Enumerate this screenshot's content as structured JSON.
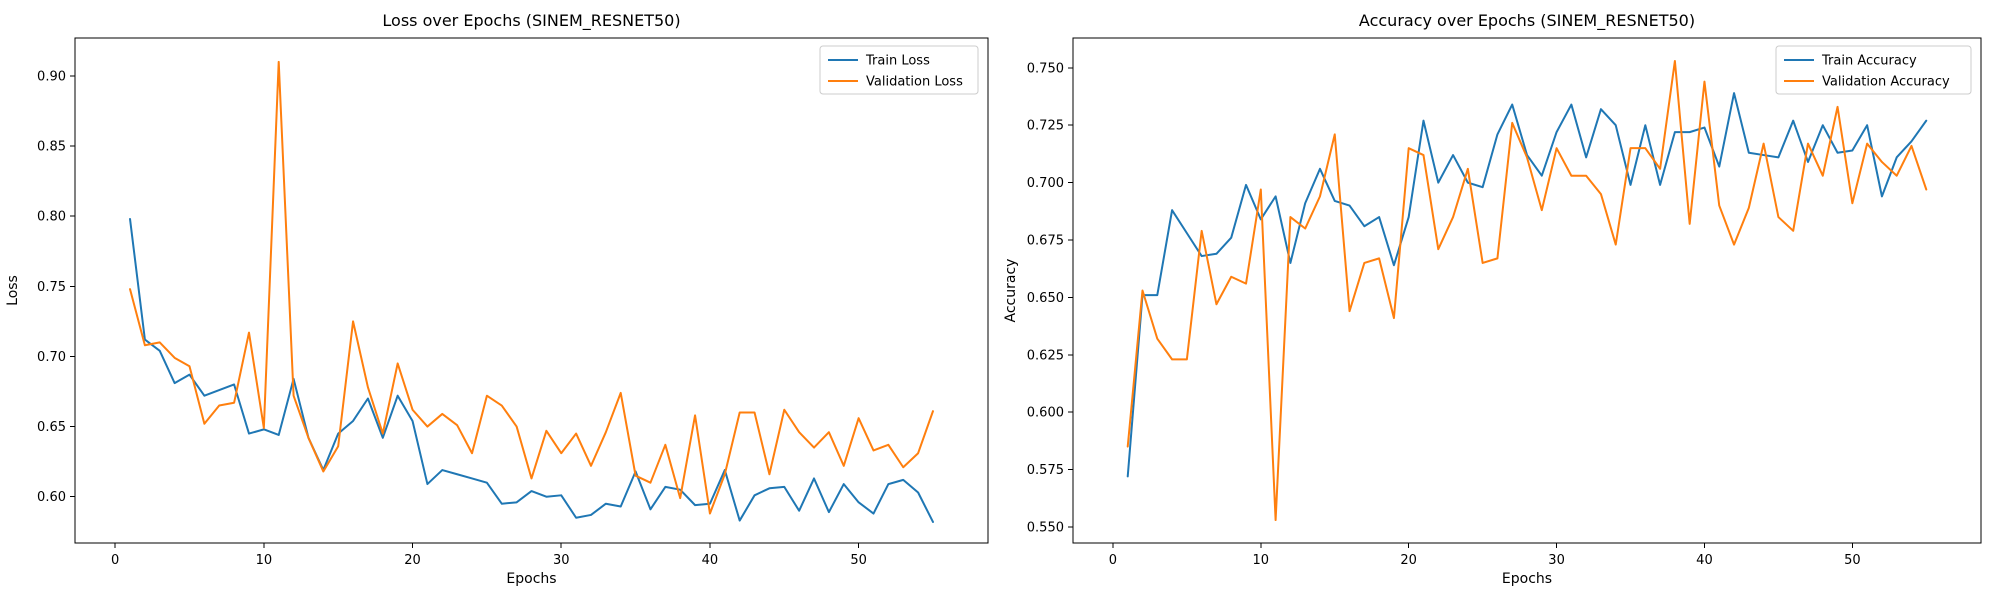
{
  "chart_data": [
    {
      "type": "line",
      "title": "Loss over Epochs (SINEM_RESNET50)",
      "xlabel": "Epochs",
      "ylabel": "Loss",
      "xlim": [
        -2.7,
        58.7
      ],
      "ylim": [
        0.567,
        0.927
      ],
      "xticks": [
        0,
        10,
        20,
        30,
        40,
        50
      ],
      "yticks": [
        0.6,
        0.65,
        0.7,
        0.75,
        0.8,
        0.85,
        0.9
      ],
      "ytick_decimals": 2,
      "legend": "top-right",
      "grid": false,
      "x": [
        1,
        2,
        3,
        4,
        5,
        6,
        7,
        8,
        9,
        10,
        11,
        12,
        13,
        14,
        15,
        16,
        17,
        18,
        19,
        20,
        21,
        22,
        23,
        24,
        25,
        26,
        27,
        28,
        29,
        30,
        31,
        32,
        33,
        34,
        35,
        36,
        37,
        38,
        39,
        40,
        41,
        42,
        43,
        44,
        45,
        46,
        47,
        48,
        49,
        50,
        51,
        52,
        53,
        54,
        55
      ],
      "series": [
        {
          "name": "Train Loss",
          "color": "#1f77b4",
          "values": [
            0.798,
            0.712,
            0.704,
            0.681,
            0.687,
            0.672,
            0.676,
            0.68,
            0.645,
            0.648,
            0.644,
            0.684,
            0.642,
            0.619,
            0.645,
            0.654,
            0.67,
            0.642,
            0.672,
            0.654,
            0.609,
            0.619,
            0.616,
            0.613,
            0.61,
            0.595,
            0.596,
            0.604,
            0.6,
            0.601,
            0.585,
            0.587,
            0.595,
            0.593,
            0.618,
            0.591,
            0.607,
            0.605,
            0.594,
            0.595,
            0.619,
            0.583,
            0.601,
            0.606,
            0.607,
            0.59,
            0.613,
            0.589,
            0.609,
            0.596,
            0.588,
            0.609,
            0.612,
            0.603,
            0.582
          ]
        },
        {
          "name": "Validation Loss",
          "color": "#ff7f0e",
          "values": [
            0.748,
            0.708,
            0.71,
            0.699,
            0.693,
            0.652,
            0.665,
            0.667,
            0.717,
            0.649,
            0.91,
            0.672,
            0.642,
            0.618,
            0.636,
            0.725,
            0.678,
            0.645,
            0.695,
            0.662,
            0.65,
            0.659,
            0.651,
            0.631,
            0.672,
            0.665,
            0.65,
            0.613,
            0.647,
            0.631,
            0.645,
            0.622,
            0.646,
            0.674,
            0.615,
            0.61,
            0.637,
            0.599,
            0.658,
            0.588,
            0.616,
            0.66,
            0.66,
            0.616,
            0.662,
            0.646,
            0.635,
            0.646,
            0.622,
            0.656,
            0.633,
            0.637,
            0.621,
            0.631,
            0.661
          ]
        }
      ]
    },
    {
      "type": "line",
      "title": "Accuracy over Epochs (SINEM_RESNET50)",
      "xlabel": "Epochs",
      "ylabel": "Accuracy",
      "xlim": [
        -2.7,
        58.7
      ],
      "ylim": [
        0.543,
        0.763
      ],
      "xticks": [
        0,
        10,
        20,
        30,
        40,
        50
      ],
      "yticks": [
        0.55,
        0.575,
        0.6,
        0.625,
        0.65,
        0.675,
        0.7,
        0.725,
        0.75
      ],
      "ytick_decimals": 3,
      "legend": "top-right",
      "grid": false,
      "x": [
        1,
        2,
        3,
        4,
        5,
        6,
        7,
        8,
        9,
        10,
        11,
        12,
        13,
        14,
        15,
        16,
        17,
        18,
        19,
        20,
        21,
        22,
        23,
        24,
        25,
        26,
        27,
        28,
        29,
        30,
        31,
        32,
        33,
        34,
        35,
        36,
        37,
        38,
        39,
        40,
        41,
        42,
        43,
        44,
        45,
        46,
        47,
        48,
        49,
        50,
        51,
        52,
        53,
        54,
        55
      ],
      "series": [
        {
          "name": "Train Accuracy",
          "color": "#1f77b4",
          "values": [
            0.572,
            0.651,
            0.651,
            0.688,
            0.678,
            0.668,
            0.669,
            0.676,
            0.699,
            0.684,
            0.694,
            0.665,
            0.691,
            0.706,
            0.692,
            0.69,
            0.681,
            0.685,
            0.664,
            0.685,
            0.727,
            0.7,
            0.712,
            0.7,
            0.698,
            0.721,
            0.734,
            0.712,
            0.703,
            0.722,
            0.734,
            0.711,
            0.732,
            0.725,
            0.699,
            0.725,
            0.699,
            0.722,
            0.722,
            0.724,
            0.707,
            0.739,
            0.713,
            0.712,
            0.711,
            0.727,
            0.709,
            0.725,
            0.713,
            0.714,
            0.725,
            0.694,
            0.711,
            0.718,
            0.727
          ]
        },
        {
          "name": "Validation Accuracy",
          "color": "#ff7f0e",
          "values": [
            0.585,
            0.653,
            0.632,
            0.623,
            0.623,
            0.679,
            0.647,
            0.659,
            0.656,
            0.697,
            0.553,
            0.685,
            0.68,
            0.694,
            0.721,
            0.644,
            0.665,
            0.667,
            0.641,
            0.715,
            0.712,
            0.671,
            0.685,
            0.706,
            0.665,
            0.667,
            0.726,
            0.711,
            0.688,
            0.715,
            0.703,
            0.703,
            0.695,
            0.673,
            0.715,
            0.715,
            0.706,
            0.753,
            0.682,
            0.744,
            0.69,
            0.673,
            0.689,
            0.717,
            0.685,
            0.679,
            0.717,
            0.703,
            0.733,
            0.691,
            0.717,
            0.709,
            0.703,
            0.716,
            0.697
          ]
        }
      ]
    }
  ]
}
